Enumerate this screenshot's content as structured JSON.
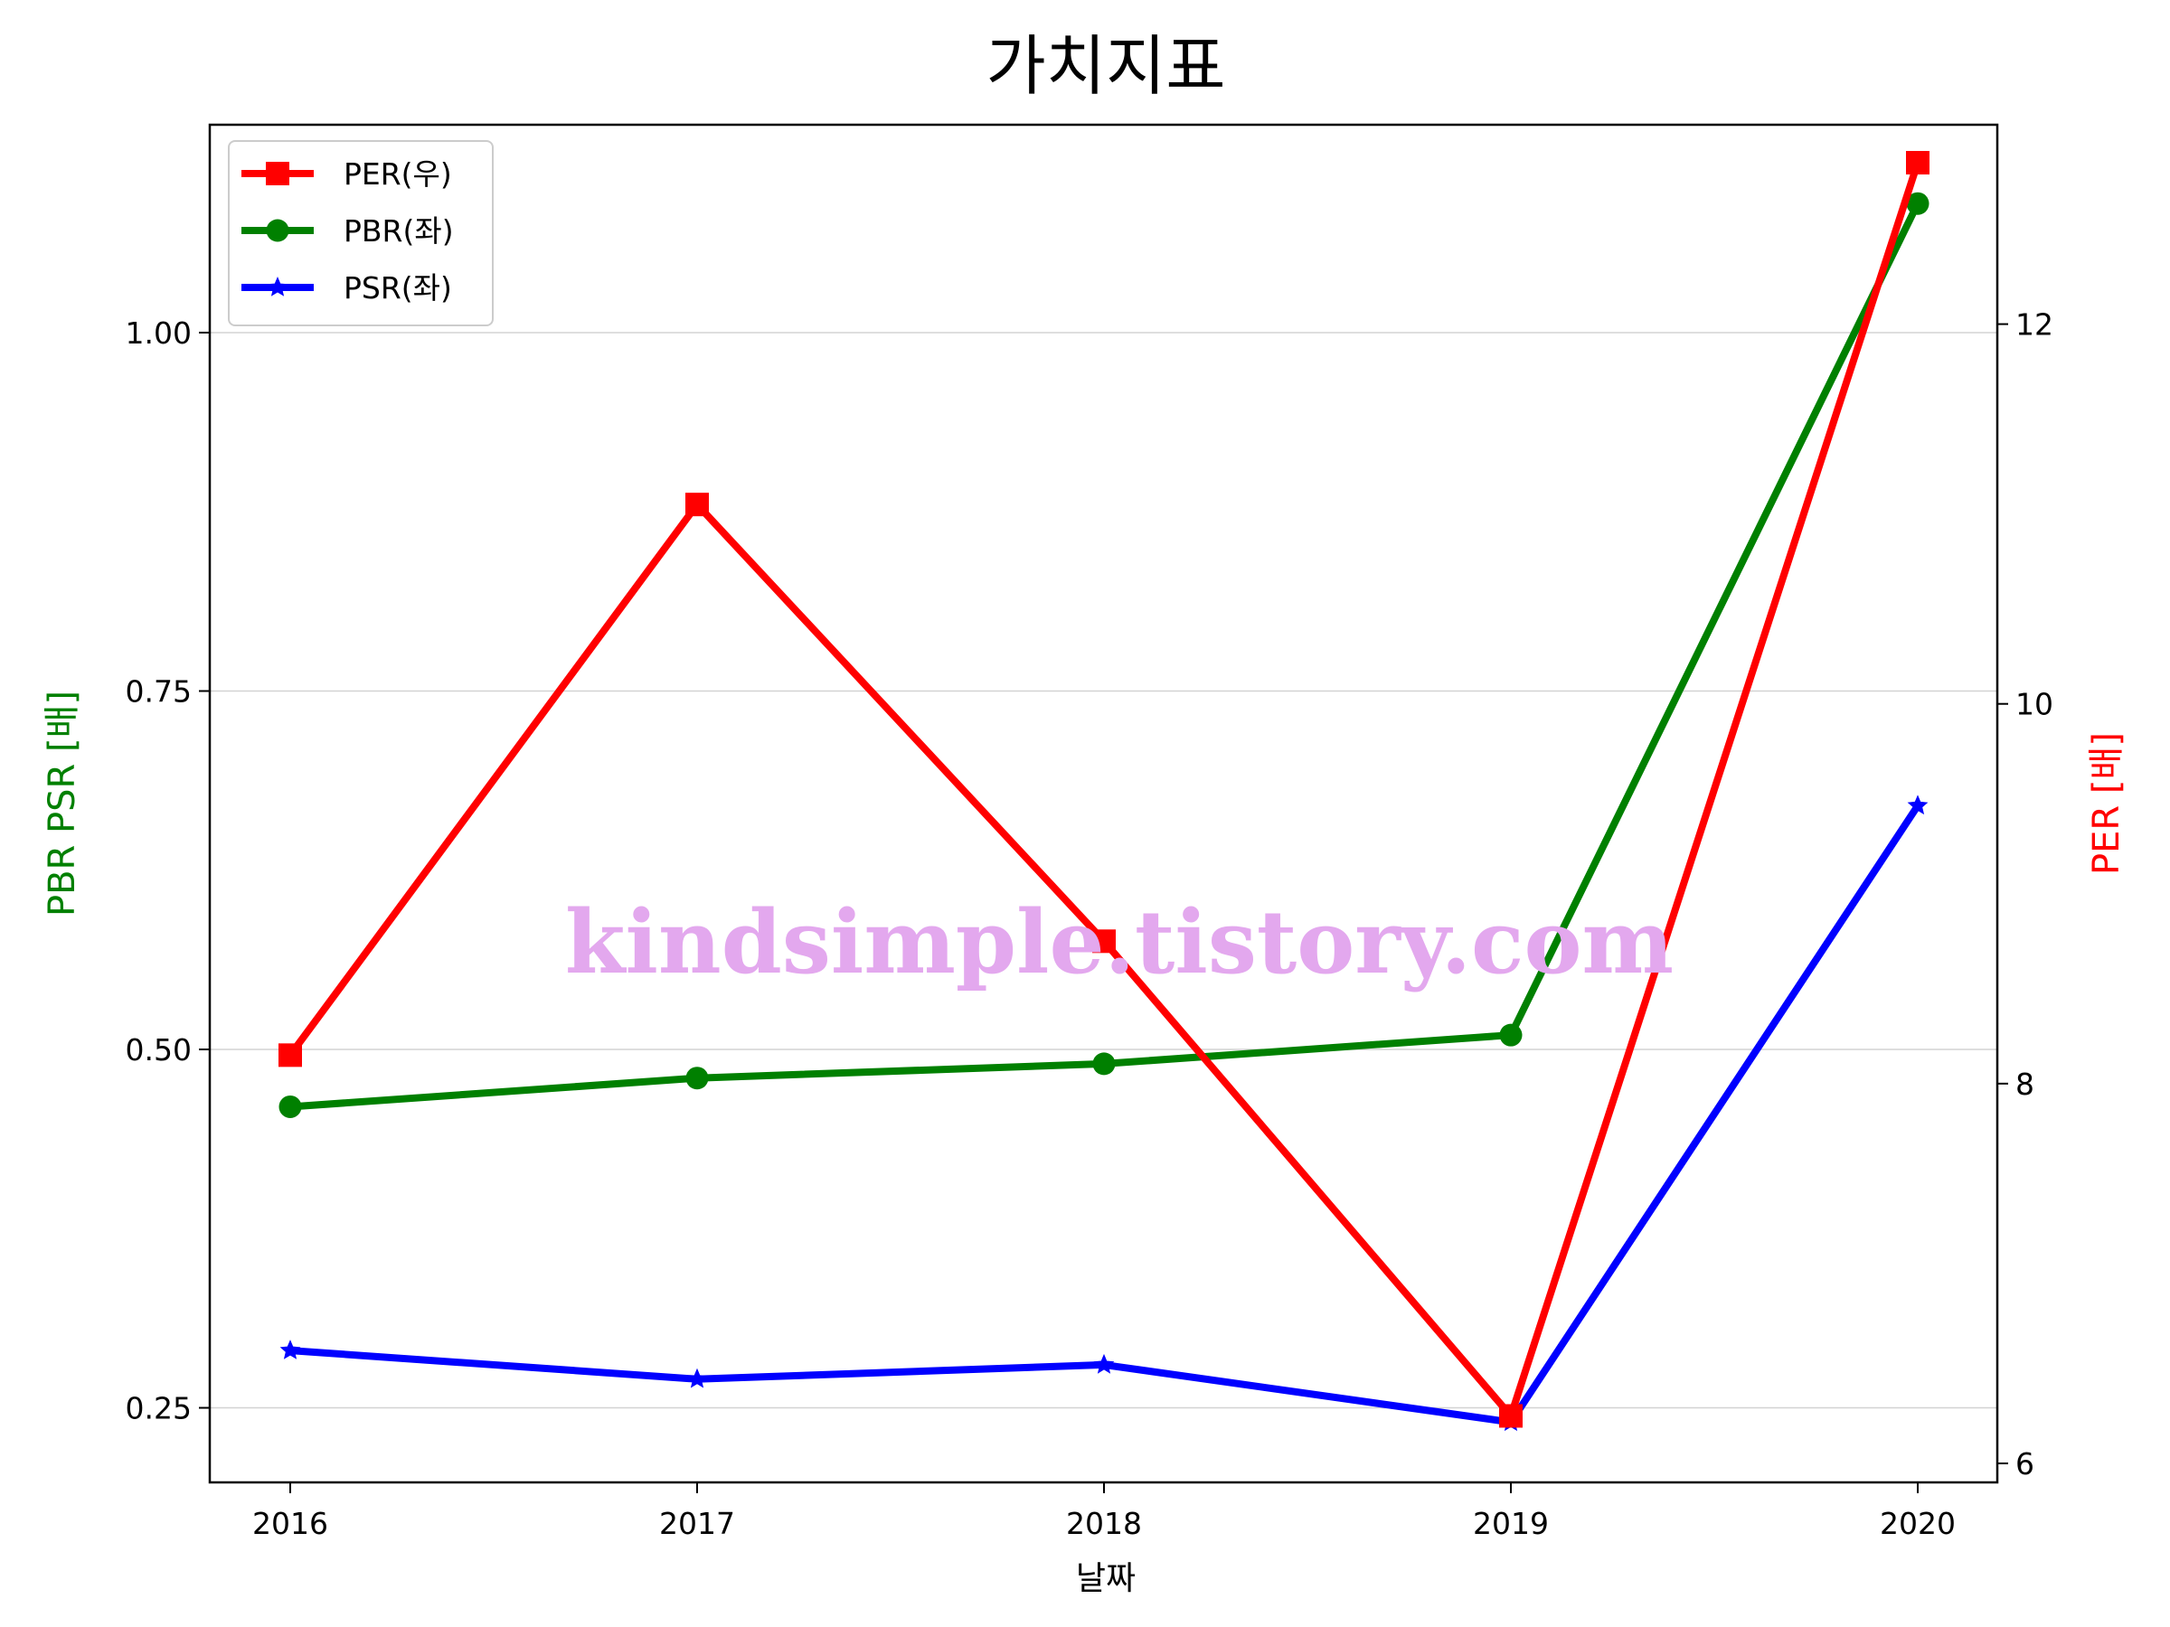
{
  "chart_data": {
    "type": "line",
    "title": "가치지표",
    "xlabel": "날짜",
    "ylabel_left": "PBR PSR [배]",
    "ylabel_right": "PER [배]",
    "categories": [
      "2016",
      "2017",
      "2018",
      "2019",
      "2020"
    ],
    "left_axis": {
      "range": [
        0.198,
        1.145
      ],
      "ticks": [
        0.25,
        0.5,
        0.75,
        1.0
      ],
      "tick_labels": [
        "0.25",
        "0.50",
        "0.75",
        "1.00"
      ],
      "grid": true,
      "label_color": "#008000"
    },
    "right_axis": {
      "range": [
        5.9,
        13.05
      ],
      "ticks": [
        6,
        8,
        10,
        12
      ],
      "tick_labels": [
        "6",
        "8",
        "10",
        "12"
      ],
      "label_color": "#ff0000"
    },
    "series": [
      {
        "name": "PER(우)",
        "axis": "right",
        "color": "#ff0000",
        "marker": "square",
        "values": [
          8.15,
          11.05,
          8.75,
          6.25,
          12.85
        ]
      },
      {
        "name": "PBR(좌)",
        "axis": "left",
        "color": "#008000",
        "marker": "circle",
        "values": [
          0.46,
          0.48,
          0.49,
          0.51,
          1.09
        ]
      },
      {
        "name": "PSR(좌)",
        "axis": "left",
        "color": "#0000ff",
        "marker": "star",
        "values": [
          0.29,
          0.27,
          0.28,
          0.24,
          0.67
        ]
      }
    ],
    "legend_position": "upper-left",
    "watermark": "kindsimple.tistory.com"
  }
}
